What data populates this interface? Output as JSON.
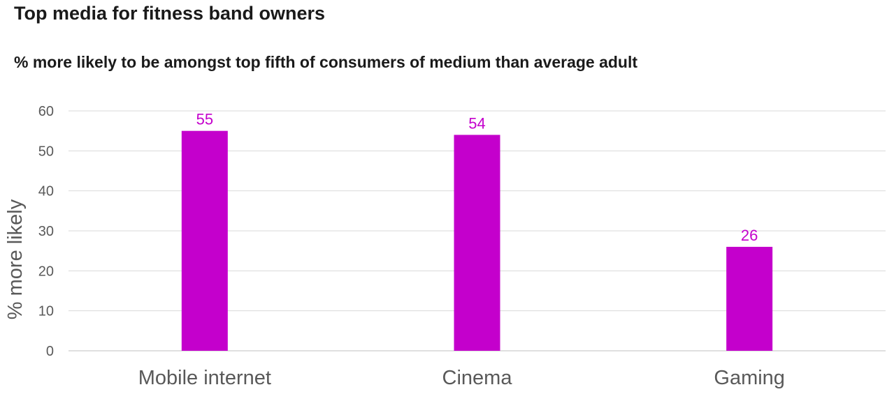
{
  "chart_data": {
    "type": "bar",
    "title": "Top media for fitness band owners",
    "subtitle": "% more likely to be amongst top fifth of consumers of medium than average adult",
    "ylabel": "% more likely",
    "xlabel": "",
    "categories": [
      "Mobile internet",
      "Cinema",
      "Gaming"
    ],
    "values": [
      55,
      54,
      26
    ],
    "ylim": [
      0,
      60
    ],
    "yticks": [
      0,
      10,
      20,
      30,
      40,
      50,
      60
    ],
    "grid": true,
    "legend": "none",
    "colors": {
      "bar": "#c400cc",
      "data_label": "#c400cc",
      "grid": "#d9d9d9",
      "axis": "#bfbfbf",
      "text": "#595959"
    }
  }
}
